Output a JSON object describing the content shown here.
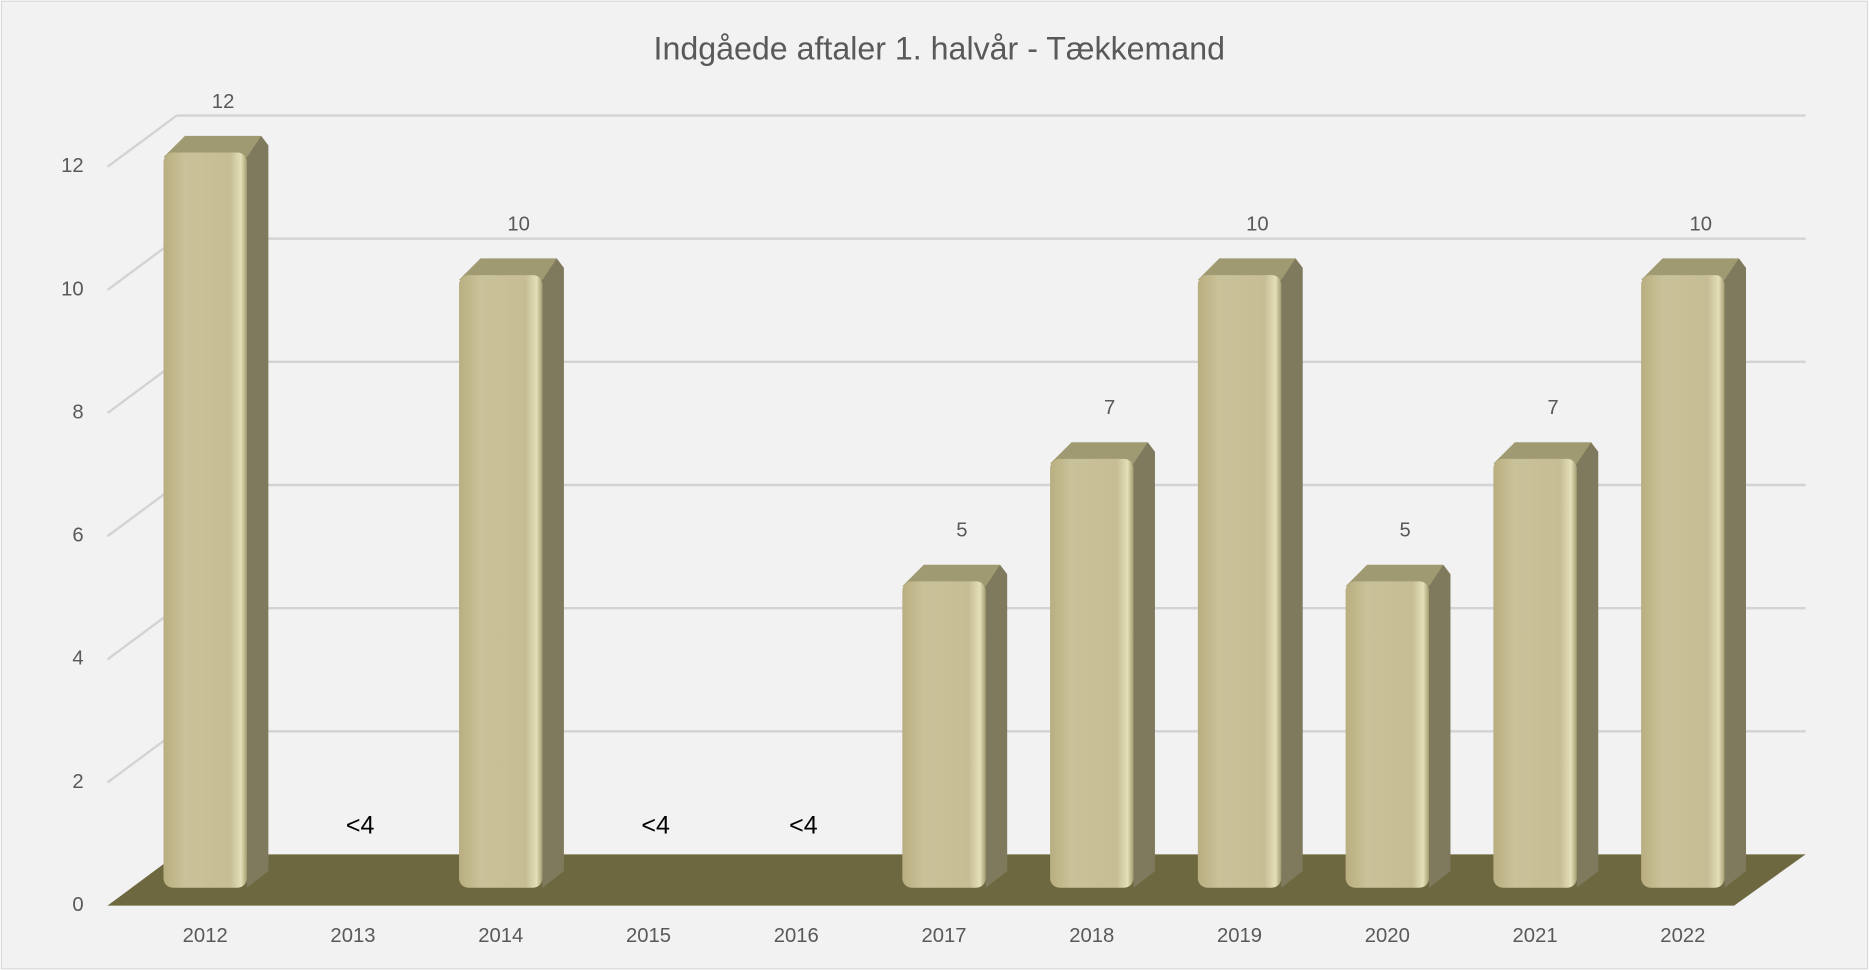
{
  "chart_data": {
    "type": "bar3d",
    "title": "Indgåede aftaler 1. halvår - Tækkemand",
    "categories": [
      "2012",
      "2013",
      "2014",
      "2015",
      "2016",
      "2017",
      "2018",
      "2019",
      "2020",
      "2021",
      "2022"
    ],
    "values": [
      12,
      null,
      10,
      null,
      null,
      5,
      7,
      10,
      5,
      7,
      10
    ],
    "value_labels": [
      "12",
      "<4",
      "10",
      "<4",
      "<4",
      "5",
      "7",
      "10",
      "5",
      "7",
      "10"
    ],
    "color": "#c6bd94",
    "floor_color": "#6e6840",
    "ylim": [
      0,
      12
    ],
    "yticks": [
      0,
      2,
      4,
      6,
      8,
      10,
      12
    ],
    "grid": true
  }
}
